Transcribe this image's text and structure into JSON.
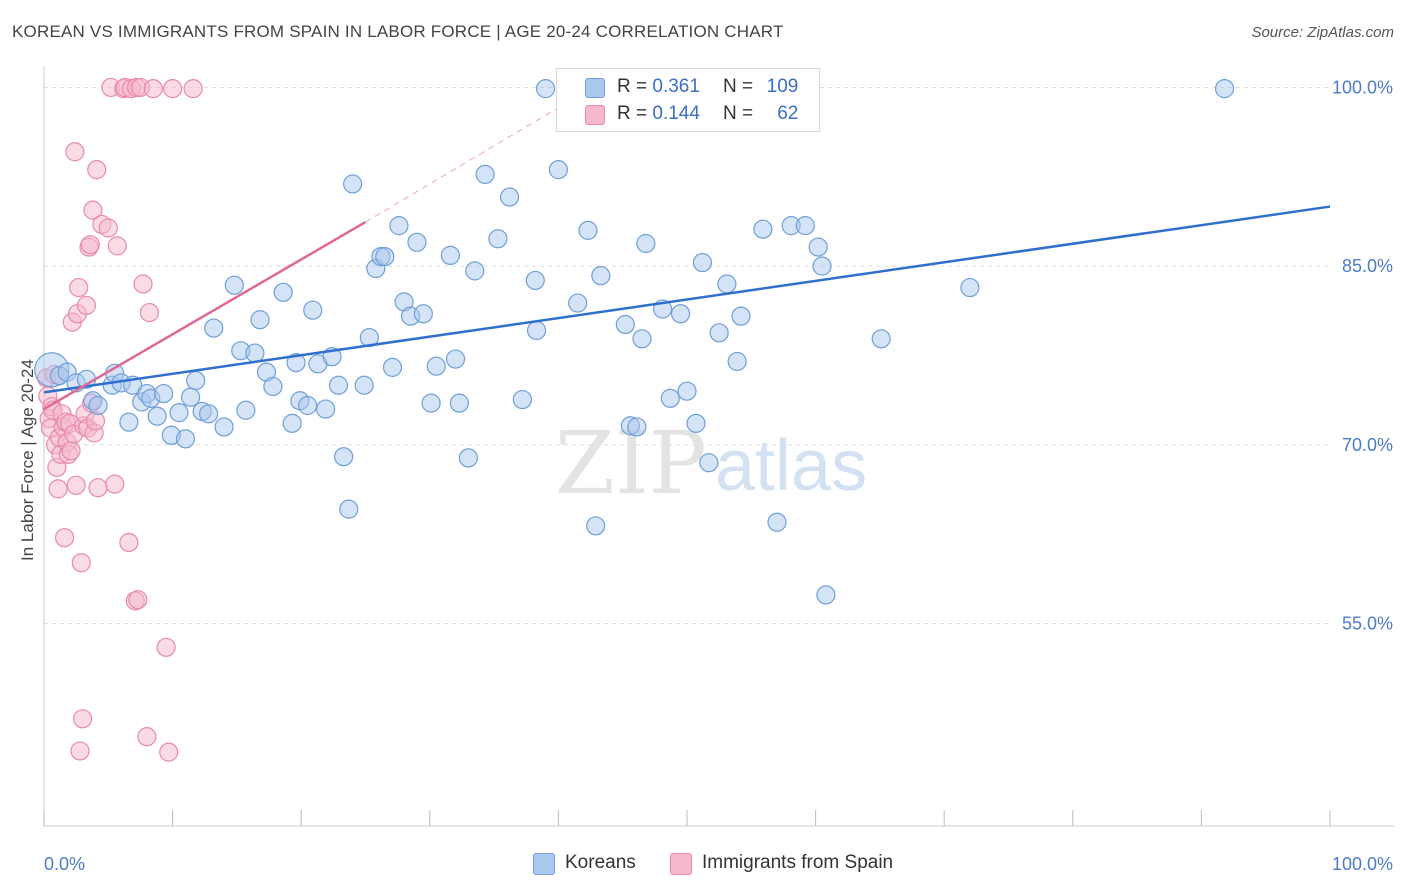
{
  "title": "KOREAN VS IMMIGRANTS FROM SPAIN IN LABOR FORCE | AGE 20-24 CORRELATION CHART",
  "source": "Source: ZipAtlas.com",
  "colors": {
    "blue_fill": "#a9c8ee",
    "blue_stroke": "#6f9fd8",
    "blue_line": "#2f6fce",
    "pink_fill": "#f5b8cc",
    "pink_stroke": "#e98aab",
    "pink_line": "#e06895",
    "axis_text": "#4a7cc9",
    "grid": "#dddddd"
  },
  "legend": {
    "rows": [
      {
        "r_label": "R = ",
        "r_value": "0.361",
        "n_label": "N = ",
        "n_value": "109"
      },
      {
        "r_label": "R = ",
        "r_value": "0.144",
        "n_label": "N = ",
        "n_value": "62"
      }
    ]
  },
  "bottom_legend": {
    "koreans": "Koreans",
    "spain": "Immigrants from Spain"
  },
  "watermark": {
    "zip": "ZIP",
    "atlas": "atlas"
  },
  "chart_data": {
    "type": "scatter",
    "title": "KOREAN VS IMMIGRANTS FROM SPAIN IN LABOR FORCE | AGE 20-24 CORRELATION CHART",
    "xlabel": "",
    "ylabel": "In Labor Force | Age 20-24",
    "xlim": [
      0,
      100
    ],
    "ylim": [
      38.0,
      101.8
    ],
    "x_tick_labels": [
      "0.0%",
      "100.0%"
    ],
    "y_ticks": [
      {
        "value": 55.0,
        "label": "55.0%"
      },
      {
        "value": 70.0,
        "label": "70.0%"
      },
      {
        "value": 85.0,
        "label": "85.0%"
      },
      {
        "value": 100.0,
        "label": "100.0%"
      }
    ],
    "grid": true,
    "legend_position": "top-center",
    "series": [
      {
        "name": "Koreans",
        "r": 0.361,
        "n": 109,
        "trend": {
          "x": [
            0,
            100
          ],
          "y": [
            74.4,
            90.0
          ]
        },
        "points": [
          [
            0.6,
            76.3,
            "big"
          ],
          [
            1.2,
            75.8
          ],
          [
            1.8,
            76.1
          ],
          [
            2.5,
            75.2
          ],
          [
            3.3,
            75.5
          ],
          [
            3.8,
            73.7
          ],
          [
            4.2,
            73.3
          ],
          [
            5.3,
            75.0
          ],
          [
            5.5,
            76.0
          ],
          [
            6.0,
            75.2
          ],
          [
            6.6,
            71.9
          ],
          [
            6.9,
            75.0
          ],
          [
            7.6,
            73.6
          ],
          [
            8.0,
            74.3
          ],
          [
            8.3,
            73.9
          ],
          [
            8.8,
            72.4
          ],
          [
            9.3,
            74.3
          ],
          [
            9.9,
            70.8
          ],
          [
            10.5,
            72.7
          ],
          [
            11.0,
            70.5
          ],
          [
            11.4,
            74.0
          ],
          [
            11.8,
            75.4
          ],
          [
            12.3,
            72.8
          ],
          [
            12.8,
            72.6
          ],
          [
            13.2,
            79.8
          ],
          [
            14.0,
            71.5
          ],
          [
            14.8,
            83.4
          ],
          [
            15.3,
            77.9
          ],
          [
            15.7,
            72.9
          ],
          [
            16.4,
            77.7
          ],
          [
            16.8,
            80.5
          ],
          [
            17.3,
            76.1
          ],
          [
            17.8,
            74.9
          ],
          [
            18.6,
            82.8
          ],
          [
            19.3,
            71.8
          ],
          [
            19.6,
            76.9
          ],
          [
            19.9,
            73.7
          ],
          [
            20.5,
            73.3
          ],
          [
            20.9,
            81.3
          ],
          [
            21.3,
            76.8
          ],
          [
            21.9,
            73.0
          ],
          [
            22.4,
            77.4
          ],
          [
            22.9,
            75.0
          ],
          [
            23.3,
            69.0
          ],
          [
            23.7,
            64.6
          ],
          [
            24.0,
            91.9
          ],
          [
            24.9,
            75.0
          ],
          [
            25.3,
            79.0
          ],
          [
            25.8,
            84.8
          ],
          [
            26.2,
            85.8
          ],
          [
            26.5,
            85.8
          ],
          [
            27.1,
            76.5
          ],
          [
            27.6,
            88.4
          ],
          [
            28.0,
            82.0
          ],
          [
            28.5,
            80.8
          ],
          [
            29.0,
            87.0
          ],
          [
            29.5,
            81.0
          ],
          [
            30.1,
            73.5
          ],
          [
            30.5,
            76.6
          ],
          [
            31.6,
            85.9
          ],
          [
            32.0,
            77.2
          ],
          [
            32.3,
            73.5
          ],
          [
            33.0,
            68.9
          ],
          [
            33.5,
            84.6
          ],
          [
            34.3,
            92.7
          ],
          [
            35.3,
            87.3
          ],
          [
            36.2,
            90.8
          ],
          [
            37.2,
            73.8
          ],
          [
            38.2,
            83.8
          ],
          [
            38.3,
            79.6
          ],
          [
            39.0,
            99.9
          ],
          [
            40.0,
            93.1
          ],
          [
            40.7,
            99.9
          ],
          [
            41.5,
            81.9
          ],
          [
            42.3,
            88.0
          ],
          [
            42.9,
            63.2
          ],
          [
            43.3,
            84.2
          ],
          [
            44.9,
            99.9
          ],
          [
            45.2,
            80.1
          ],
          [
            45.6,
            71.6
          ],
          [
            46.1,
            71.5
          ],
          [
            46.5,
            78.9
          ],
          [
            46.8,
            86.9
          ],
          [
            48.1,
            81.4
          ],
          [
            48.7,
            73.9
          ],
          [
            49.5,
            81.0
          ],
          [
            50.0,
            74.5
          ],
          [
            50.7,
            71.8
          ],
          [
            51.2,
            85.3
          ],
          [
            51.7,
            68.5
          ],
          [
            52.5,
            79.4
          ],
          [
            53.1,
            83.5
          ],
          [
            53.9,
            77.0
          ],
          [
            54.2,
            80.8
          ],
          [
            55.9,
            88.1
          ],
          [
            57.0,
            63.5
          ],
          [
            58.1,
            88.4
          ],
          [
            59.2,
            88.4
          ],
          [
            60.2,
            86.6
          ],
          [
            60.5,
            85.0
          ],
          [
            60.8,
            57.4
          ],
          [
            65.1,
            78.9
          ],
          [
            72.0,
            83.2
          ],
          [
            91.8,
            99.9
          ],
          [
            45.0,
            97.5
          ]
        ]
      },
      {
        "name": "Immigrants from Spain",
        "r": 0.144,
        "n": 62,
        "trend": {
          "x": [
            0,
            25
          ],
          "y": [
            73.0,
            88.7
          ]
        },
        "trend_extension": {
          "x": [
            25,
            42.5
          ],
          "y": [
            88.7,
            99.9
          ]
        },
        "points": [
          [
            0.2,
            75.6
          ],
          [
            0.3,
            74.1
          ],
          [
            0.4,
            72.2
          ],
          [
            0.5,
            71.4
          ],
          [
            0.6,
            73.2
          ],
          [
            0.7,
            72.9
          ],
          [
            0.8,
            75.9
          ],
          [
            0.9,
            70.0
          ],
          [
            1.0,
            68.1
          ],
          [
            1.1,
            66.3
          ],
          [
            1.2,
            70.6
          ],
          [
            1.3,
            69.2
          ],
          [
            1.4,
            72.6
          ],
          [
            1.5,
            71.5
          ],
          [
            1.6,
            62.2
          ],
          [
            1.7,
            71.9
          ],
          [
            1.8,
            70.2
          ],
          [
            1.9,
            69.2
          ],
          [
            2.0,
            71.8
          ],
          [
            2.1,
            69.5
          ],
          [
            2.2,
            80.3
          ],
          [
            2.3,
            70.9
          ],
          [
            2.4,
            94.6
          ],
          [
            2.5,
            66.6
          ],
          [
            2.6,
            81.0
          ],
          [
            2.7,
            83.2
          ],
          [
            2.8,
            44.3
          ],
          [
            2.9,
            60.1
          ],
          [
            3.0,
            47.0
          ],
          [
            3.1,
            71.6
          ],
          [
            3.2,
            72.6
          ],
          [
            3.3,
            81.7
          ],
          [
            3.4,
            71.4
          ],
          [
            3.5,
            86.6
          ],
          [
            3.6,
            86.8
          ],
          [
            3.7,
            73.5
          ],
          [
            3.8,
            89.7
          ],
          [
            3.9,
            71.0
          ],
          [
            4.0,
            72.0
          ],
          [
            4.1,
            93.1
          ],
          [
            4.2,
            66.4
          ],
          [
            4.5,
            88.5
          ],
          [
            5.0,
            88.2
          ],
          [
            5.2,
            100.0
          ],
          [
            5.5,
            66.7
          ],
          [
            5.7,
            86.7
          ],
          [
            6.2,
            99.9
          ],
          [
            6.3,
            100.0
          ],
          [
            6.6,
            61.8
          ],
          [
            6.8,
            99.9
          ],
          [
            7.1,
            56.9
          ],
          [
            7.2,
            100.0
          ],
          [
            7.3,
            57.0
          ],
          [
            7.5,
            100.0
          ],
          [
            7.7,
            83.5
          ],
          [
            8.0,
            45.5
          ],
          [
            8.2,
            81.1
          ],
          [
            8.5,
            99.9
          ],
          [
            9.5,
            53.0
          ],
          [
            9.7,
            44.2
          ],
          [
            10.0,
            99.9
          ],
          [
            11.6,
            99.9
          ]
        ]
      }
    ]
  }
}
